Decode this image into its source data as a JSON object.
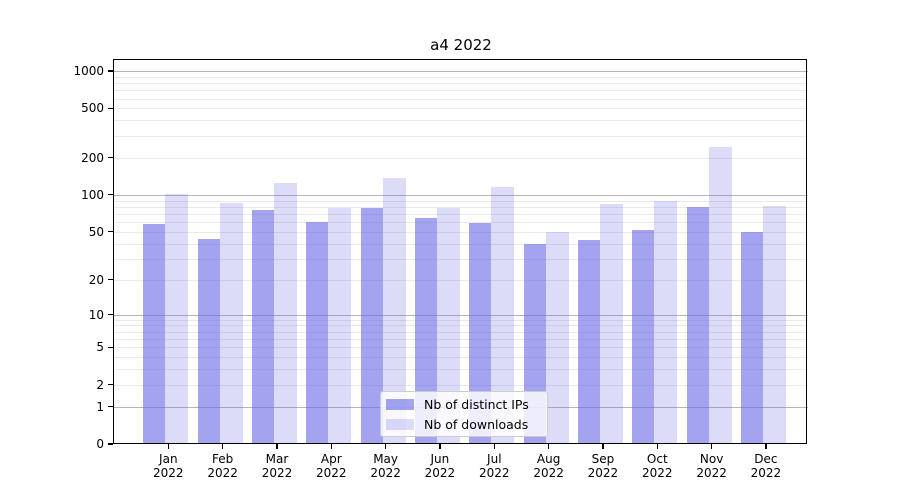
{
  "title": "a4 2022",
  "chart_data": {
    "type": "bar",
    "title": "a4 2022",
    "months": [
      "Jan",
      "Feb",
      "Mar",
      "Apr",
      "May",
      "Jun",
      "Jul",
      "Aug",
      "Sep",
      "Oct",
      "Nov",
      "Dec"
    ],
    "year": "2022",
    "series": [
      {
        "name": "Nb of distinct IPs",
        "color": "rgba(102,102,230,0.60)",
        "values": [
          58,
          44,
          75,
          60,
          78,
          65,
          59,
          40,
          43,
          52,
          80,
          50
        ]
      },
      {
        "name": "Nb of downloads",
        "color": "rgba(102,102,230,0.23)",
        "values": [
          101,
          86,
          124,
          78,
          137,
          78,
          116,
          50,
          84,
          90,
          245,
          81
        ]
      }
    ],
    "yscale": "symlog (position proportional to ln(1+v))",
    "yticks": [
      0,
      1,
      2,
      5,
      10,
      20,
      50,
      100,
      200,
      500,
      1000
    ],
    "ylim": [
      0,
      1200
    ],
    "xlabel": "",
    "ylabel": "",
    "grid": "on",
    "legend_position": "lower center"
  },
  "colors": {
    "bar_distinct_ips": "rgba(102,102,230,0.60)",
    "bar_downloads": "rgba(102,102,230,0.23)",
    "grid_major": "#b5b5b5",
    "grid_minor": "#e9e9e9",
    "axis": "#000000",
    "background": "#ffffff"
  }
}
